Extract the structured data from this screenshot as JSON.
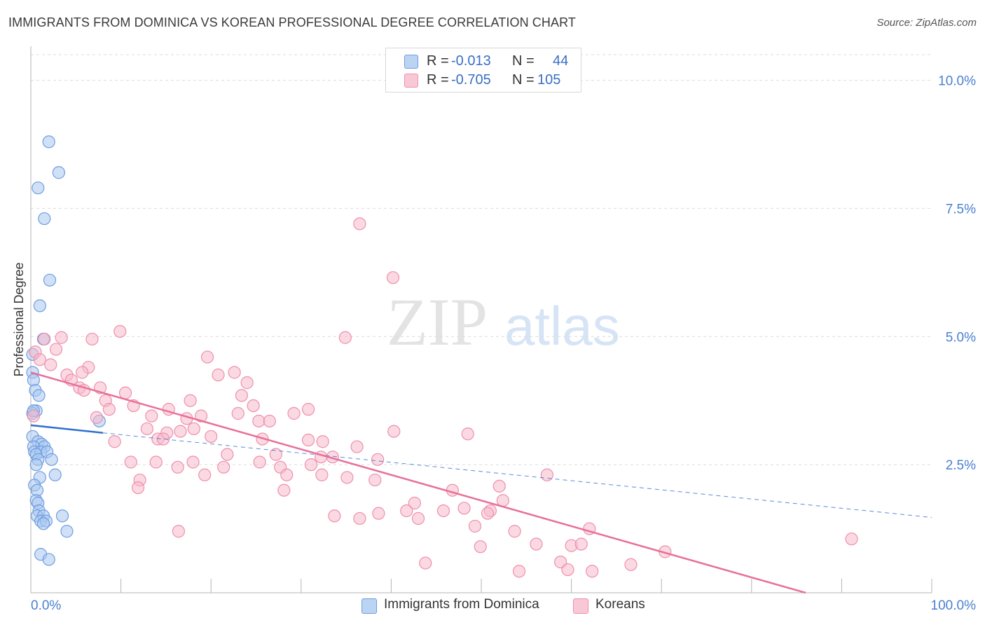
{
  "title": "IMMIGRANTS FROM DOMINICA VS KOREAN PROFESSIONAL DEGREE CORRELATION CHART",
  "source": "Source: ZipAtlas.com",
  "watermark": {
    "zip": "ZIP",
    "atlas": "atlas"
  },
  "colors": {
    "blue_fill": "#a9c8f0",
    "blue_stroke": "#6f9de0",
    "blue_line": "#2f6fce",
    "pink_fill": "#f7b9cc",
    "pink_stroke": "#ee8fab",
    "pink_line": "#e8709a",
    "axis_text": "#4a7fd0"
  },
  "legend": {
    "rows": [
      {
        "r_label": "R =",
        "r_value": "-0.013",
        "n_label": "N =",
        "n_value": "44"
      },
      {
        "r_label": "R =",
        "r_value": "-0.705",
        "n_label": "N =",
        "n_value": "105"
      }
    ]
  },
  "bottom_legend": {
    "series1": "Immigrants from Dominica",
    "series2": "Koreans"
  },
  "chart_data": {
    "type": "scatter",
    "xlabel": "",
    "ylabel": "Professional Degree",
    "xlim": [
      0,
      100
    ],
    "ylim": [
      0,
      10.5
    ],
    "x_tick_labels": {
      "min": "0.0%",
      "max": "100.0%"
    },
    "y_ticks": [
      {
        "value": 2.5,
        "label": "2.5%"
      },
      {
        "value": 5.0,
        "label": "5.0%"
      },
      {
        "value": 7.5,
        "label": "7.5%"
      },
      {
        "value": 10.0,
        "label": "10.0%"
      }
    ],
    "grid": true,
    "series": [
      {
        "name": "Immigrants from Dominica",
        "color": "blue",
        "points": [
          [
            2.0,
            8.8
          ],
          [
            3.1,
            8.2
          ],
          [
            0.8,
            7.9
          ],
          [
            1.5,
            7.3
          ],
          [
            2.1,
            6.1
          ],
          [
            1.0,
            5.6
          ],
          [
            1.4,
            4.95
          ],
          [
            0.2,
            4.65
          ],
          [
            0.2,
            4.3
          ],
          [
            0.3,
            4.15
          ],
          [
            0.5,
            3.95
          ],
          [
            0.9,
            3.85
          ],
          [
            0.6,
            3.55
          ],
          [
            0.2,
            3.5
          ],
          [
            7.6,
            3.35
          ],
          [
            0.2,
            3.05
          ],
          [
            0.8,
            2.95
          ],
          [
            1.2,
            2.9
          ],
          [
            1.5,
            2.85
          ],
          [
            0.3,
            2.85
          ],
          [
            0.4,
            2.75
          ],
          [
            1.1,
            2.75
          ],
          [
            0.6,
            2.7
          ],
          [
            1.8,
            2.75
          ],
          [
            0.8,
            2.6
          ],
          [
            2.3,
            2.6
          ],
          [
            0.6,
            2.5
          ],
          [
            2.7,
            2.3
          ],
          [
            1.0,
            2.25
          ],
          [
            0.4,
            2.1
          ],
          [
            0.7,
            2.0
          ],
          [
            0.6,
            1.8
          ],
          [
            0.8,
            1.75
          ],
          [
            0.9,
            1.6
          ],
          [
            0.7,
            1.5
          ],
          [
            1.4,
            1.5
          ],
          [
            3.5,
            1.5
          ],
          [
            1.1,
            1.4
          ],
          [
            1.7,
            1.4
          ],
          [
            1.4,
            1.35
          ],
          [
            4.0,
            1.2
          ],
          [
            1.1,
            0.75
          ],
          [
            2.0,
            0.65
          ],
          [
            0.3,
            3.55
          ]
        ],
        "trend": {
          "x": [
            0,
            8
          ],
          "y": [
            3.27,
            3.12
          ],
          "dashed_extension": {
            "x": [
              8,
              100
            ],
            "y": [
              3.12,
              1.47
            ]
          }
        }
      },
      {
        "name": "Koreans",
        "color": "pink",
        "points": [
          [
            36.5,
            7.2
          ],
          [
            40.2,
            6.15
          ],
          [
            1.5,
            4.95
          ],
          [
            3.4,
            4.98
          ],
          [
            6.8,
            4.95
          ],
          [
            9.9,
            5.1
          ],
          [
            34.9,
            4.98
          ],
          [
            2.2,
            4.45
          ],
          [
            2.8,
            4.75
          ],
          [
            19.6,
            4.6
          ],
          [
            6.4,
            4.4
          ],
          [
            4.0,
            4.25
          ],
          [
            4.5,
            4.15
          ],
          [
            5.7,
            4.3
          ],
          [
            20.8,
            4.25
          ],
          [
            22.6,
            4.3
          ],
          [
            24.0,
            4.1
          ],
          [
            5.4,
            4.0
          ],
          [
            7.7,
            4.0
          ],
          [
            10.5,
            3.9
          ],
          [
            5.9,
            3.95
          ],
          [
            23.4,
            3.85
          ],
          [
            8.3,
            3.75
          ],
          [
            11.4,
            3.65
          ],
          [
            15.3,
            3.58
          ],
          [
            17.7,
            3.75
          ],
          [
            24.7,
            3.65
          ],
          [
            8.7,
            3.58
          ],
          [
            30.8,
            3.58
          ],
          [
            23.0,
            3.5
          ],
          [
            29.2,
            3.5
          ],
          [
            13.4,
            3.45
          ],
          [
            17.3,
            3.4
          ],
          [
            18.9,
            3.45
          ],
          [
            7.3,
            3.42
          ],
          [
            25.3,
            3.35
          ],
          [
            26.5,
            3.35
          ],
          [
            12.9,
            3.2
          ],
          [
            16.6,
            3.15
          ],
          [
            18.1,
            3.2
          ],
          [
            40.3,
            3.15
          ],
          [
            48.5,
            3.1
          ],
          [
            15.1,
            3.12
          ],
          [
            20.0,
            3.05
          ],
          [
            9.3,
            2.95
          ],
          [
            14.1,
            3.0
          ],
          [
            14.7,
            3.0
          ],
          [
            25.7,
            3.0
          ],
          [
            30.8,
            2.98
          ],
          [
            32.4,
            2.95
          ],
          [
            36.2,
            2.85
          ],
          [
            21.8,
            2.7
          ],
          [
            27.2,
            2.7
          ],
          [
            32.2,
            2.65
          ],
          [
            33.5,
            2.65
          ],
          [
            38.5,
            2.6
          ],
          [
            11.1,
            2.55
          ],
          [
            13.9,
            2.55
          ],
          [
            18.0,
            2.55
          ],
          [
            25.4,
            2.55
          ],
          [
            27.7,
            2.45
          ],
          [
            31.1,
            2.5
          ],
          [
            16.3,
            2.45
          ],
          [
            21.4,
            2.45
          ],
          [
            32.3,
            2.3
          ],
          [
            35.1,
            2.25
          ],
          [
            38.2,
            2.2
          ],
          [
            19.3,
            2.3
          ],
          [
            28.4,
            2.3
          ],
          [
            57.3,
            2.3
          ],
          [
            12.1,
            2.2
          ],
          [
            11.9,
            2.05
          ],
          [
            52.0,
            2.08
          ],
          [
            28.1,
            2.0
          ],
          [
            46.8,
            2.0
          ],
          [
            42.6,
            1.75
          ],
          [
            52.4,
            1.8
          ],
          [
            41.7,
            1.6
          ],
          [
            45.8,
            1.6
          ],
          [
            48.1,
            1.65
          ],
          [
            51.0,
            1.6
          ],
          [
            50.7,
            1.55
          ],
          [
            33.7,
            1.5
          ],
          [
            36.5,
            1.45
          ],
          [
            38.6,
            1.55
          ],
          [
            43.0,
            1.45
          ],
          [
            49.3,
            1.3
          ],
          [
            16.4,
            1.2
          ],
          [
            53.7,
            1.2
          ],
          [
            62.0,
            1.25
          ],
          [
            49.9,
            0.9
          ],
          [
            56.1,
            0.95
          ],
          [
            60.0,
            0.92
          ],
          [
            61.1,
            0.95
          ],
          [
            70.4,
            0.8
          ],
          [
            91.1,
            1.05
          ],
          [
            43.8,
            0.58
          ],
          [
            54.2,
            0.42
          ],
          [
            58.8,
            0.6
          ],
          [
            59.6,
            0.45
          ],
          [
            62.3,
            0.42
          ],
          [
            66.6,
            0.55
          ],
          [
            0.3,
            3.45
          ],
          [
            0.5,
            4.7
          ],
          [
            1.0,
            4.55
          ]
        ],
        "trend": {
          "x": [
            0,
            86
          ],
          "y": [
            4.3,
            0.0
          ]
        }
      }
    ]
  }
}
